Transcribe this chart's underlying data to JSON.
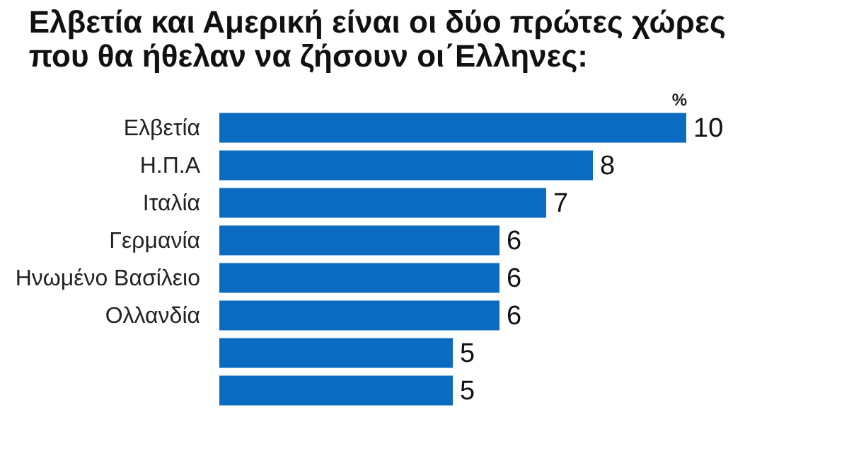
{
  "chart_data": {
    "type": "bar",
    "orientation": "horizontal",
    "title": "Ελβετία και Αμερική είναι οι δύο πρώτες χώρες\nπου θα ήθελαν να ζήσουν οι΄Ελληνες:",
    "xlabel": "%",
    "categories": [
      "Ελβετία",
      "Η.Π.Α",
      "Ιταλία",
      "Γερμανία",
      "Ηνωμένο Βασίλειο",
      "Ολλανδία",
      null,
      null
    ],
    "values": [
      10,
      8,
      7,
      6,
      6,
      6,
      5,
      5
    ],
    "color": "#0b6bc0",
    "data_labels": true,
    "grid": false,
    "tick_labels": "y"
  }
}
